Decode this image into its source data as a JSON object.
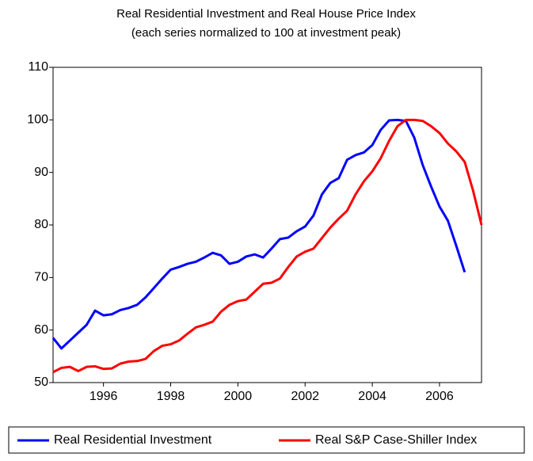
{
  "chart_data": {
    "type": "line",
    "title": "Real Residential Investment and Real House Price Index",
    "subtitle": "(each series normalized to 100 at investment peak)",
    "x": [
      1994.5,
      1994.75,
      1995,
      1995.25,
      1995.5,
      1995.75,
      1996,
      1996.25,
      1996.5,
      1996.75,
      1997,
      1997.25,
      1997.5,
      1997.75,
      1998,
      1998.25,
      1998.5,
      1998.75,
      1999,
      1999.25,
      1999.5,
      1999.75,
      2000,
      2000.25,
      2000.5,
      2000.75,
      2001,
      2001.25,
      2001.5,
      2001.75,
      2002,
      2002.25,
      2002.5,
      2002.75,
      2003,
      2003.25,
      2003.5,
      2003.75,
      2004,
      2004.25,
      2004.5,
      2004.75,
      2005,
      2005.25,
      2005.5,
      2005.75,
      2006,
      2006.25,
      2006.5,
      2006.75,
      2007,
      2007.25
    ],
    "series": [
      {
        "name": "Real Residential Investment",
        "color": "#0000ff",
        "values": [
          58.5,
          56.5,
          58,
          59.5,
          61,
          63.7,
          62.8,
          63,
          63.8,
          64.2,
          64.8,
          66.2,
          68,
          69.8,
          71.5,
          72,
          72.6,
          73,
          73.8,
          74.7,
          74.2,
          72.6,
          73,
          74,
          74.4,
          73.8,
          75.5,
          77.3,
          77.6,
          78.8,
          79.7,
          81.8,
          85.8,
          88,
          88.9,
          92.4,
          93.3,
          93.8,
          95.2,
          98.1,
          99.9,
          100,
          99.8,
          96.6,
          91.4,
          87.3,
          83.5,
          80.8,
          76,
          71,
          null,
          null
        ]
      },
      {
        "name": "Real S&P Case-Shiller Index",
        "color": "#ff0000",
        "values": [
          52,
          52.8,
          53,
          52.2,
          53,
          53.1,
          52.6,
          52.7,
          53.6,
          54,
          54.1,
          54.5,
          56,
          57,
          57.3,
          58,
          59.3,
          60.5,
          61,
          61.6,
          63.5,
          64.8,
          65.5,
          65.8,
          67.3,
          68.8,
          69,
          69.8,
          72,
          74,
          74.9,
          75.5,
          77.5,
          79.5,
          81.2,
          82.7,
          85.8,
          88.3,
          90.2,
          92.7,
          96,
          98.8,
          100,
          100,
          99.8,
          98.8,
          97.5,
          95.5,
          94,
          92,
          86.5,
          80
        ]
      }
    ],
    "xlim": [
      1994.5,
      2007.25
    ],
    "xticks": [
      1996,
      1998,
      2000,
      2002,
      2004,
      2006
    ],
    "ylim": [
      50,
      110
    ],
    "yticks": [
      50,
      60,
      70,
      80,
      90,
      100,
      110
    ],
    "grid": false,
    "legend": "bottom"
  }
}
